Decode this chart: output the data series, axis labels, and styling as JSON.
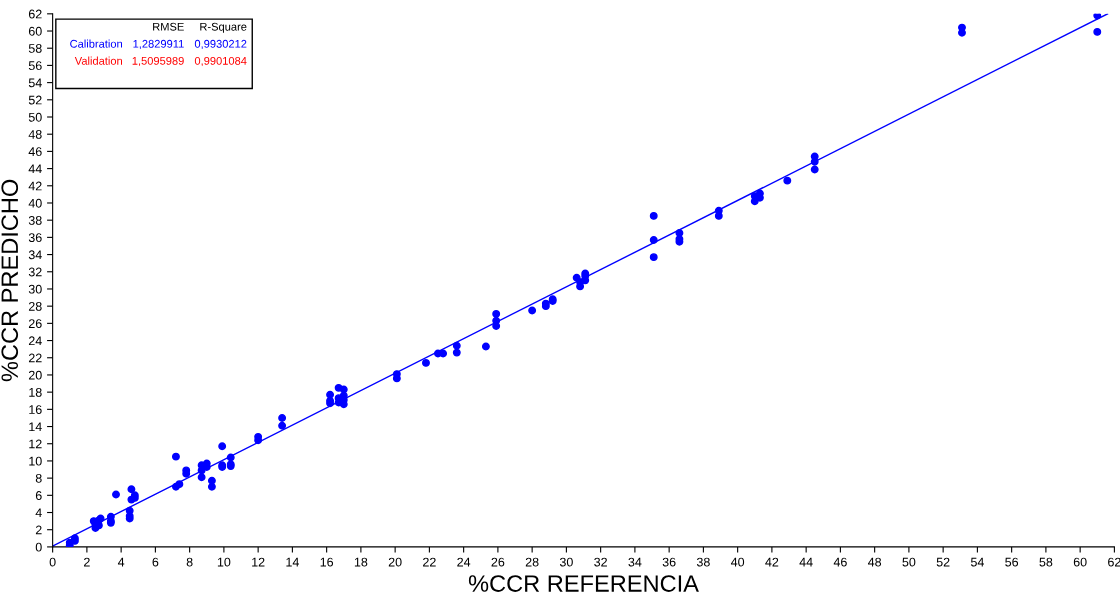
{
  "chart_data": {
    "type": "scatter",
    "xlabel": "%CCR REFERENCIA",
    "ylabel": "%CCR PREDICHO",
    "xlim": [
      0,
      62
    ],
    "ylim": [
      0,
      62
    ],
    "xticks": [
      0,
      2,
      4,
      6,
      8,
      10,
      12,
      14,
      16,
      18,
      20,
      22,
      24,
      26,
      28,
      30,
      32,
      34,
      36,
      38,
      40,
      42,
      44,
      46,
      48,
      50,
      52,
      54,
      56,
      58,
      60,
      62
    ],
    "yticks": [
      0,
      2,
      4,
      6,
      8,
      10,
      12,
      14,
      16,
      18,
      20,
      22,
      24,
      26,
      28,
      30,
      32,
      34,
      36,
      38,
      40,
      42,
      44,
      46,
      48,
      50,
      52,
      54,
      56,
      58,
      60,
      62
    ],
    "grid": false,
    "legend": false,
    "marker": "circle",
    "annotations": [
      "RMSE",
      "R-Square",
      "Calibration",
      "1,2829911",
      "0,9930212",
      "Validation",
      "1,5095989",
      "0,9901084"
    ],
    "series": [
      {
        "color": "#0000ff",
        "x": [
          1.0,
          1.0,
          1.3,
          1.3,
          2.4,
          2.5,
          2.5,
          2.7,
          2.7,
          2.8,
          3.4,
          3.4,
          3.4,
          3.7,
          4.5,
          4.5,
          4.5,
          4.6,
          4.6,
          4.8,
          4.8,
          7.2,
          7.2,
          7.4,
          7.8,
          7.8,
          8.7,
          8.7,
          8.7,
          9.0,
          9.0,
          9.3,
          9.3,
          9.9,
          9.9,
          9.9,
          10.4,
          10.4,
          10.4,
          12.0,
          12.0,
          13.4,
          13.4,
          16.2,
          16.2,
          16.2,
          16.7,
          16.7,
          16.7,
          17.0,
          17.0,
          17.0,
          17.0,
          20.1,
          20.1,
          21.8,
          22.5,
          22.8,
          23.6,
          23.6,
          25.3,
          25.9,
          25.9,
          25.9,
          28.0,
          28.8,
          28.8,
          29.2,
          29.2,
          30.6,
          30.8,
          30.8,
          31.1,
          31.1,
          31.1,
          35.1,
          35.1,
          35.1,
          36.6,
          36.6,
          36.6,
          38.9,
          38.9,
          41.0,
          41.0,
          41.3,
          41.3,
          42.9,
          44.5,
          44.5,
          44.5,
          53.1,
          53.1,
          61.0,
          61.0
        ],
        "values": [
          0.2,
          0.5,
          0.7,
          1.0,
          3.0,
          2.6,
          2.2,
          3.1,
          2.5,
          3.3,
          3.5,
          3.0,
          2.8,
          6.1,
          4.2,
          3.6,
          3.3,
          6.7,
          5.5,
          6.0,
          5.7,
          10.5,
          7.0,
          7.3,
          8.9,
          8.5,
          9.5,
          8.9,
          8.1,
          9.7,
          9.3,
          7.7,
          7.0,
          11.7,
          9.5,
          9.3,
          10.4,
          9.6,
          9.4,
          12.8,
          12.4,
          15.0,
          14.1,
          17.7,
          17.0,
          16.7,
          18.5,
          17.3,
          16.8,
          18.3,
          17.6,
          17.1,
          16.6,
          20.1,
          19.6,
          21.4,
          22.5,
          22.5,
          23.4,
          22.6,
          23.3,
          27.1,
          26.3,
          25.7,
          27.5,
          28.3,
          28.0,
          28.8,
          28.6,
          31.3,
          30.8,
          30.3,
          31.8,
          31.5,
          31.0,
          38.5,
          35.7,
          33.7,
          36.5,
          35.8,
          35.5,
          39.1,
          38.5,
          40.8,
          40.2,
          41.1,
          40.6,
          42.6,
          45.4,
          44.8,
          43.9,
          60.4,
          59.8,
          61.8,
          59.9
        ]
      },
      {
        "type": "line",
        "marker": "none",
        "color": "#0000ff",
        "x": [
          0,
          61.6
        ],
        "values": [
          0.1,
          62
        ]
      }
    ]
  }
}
